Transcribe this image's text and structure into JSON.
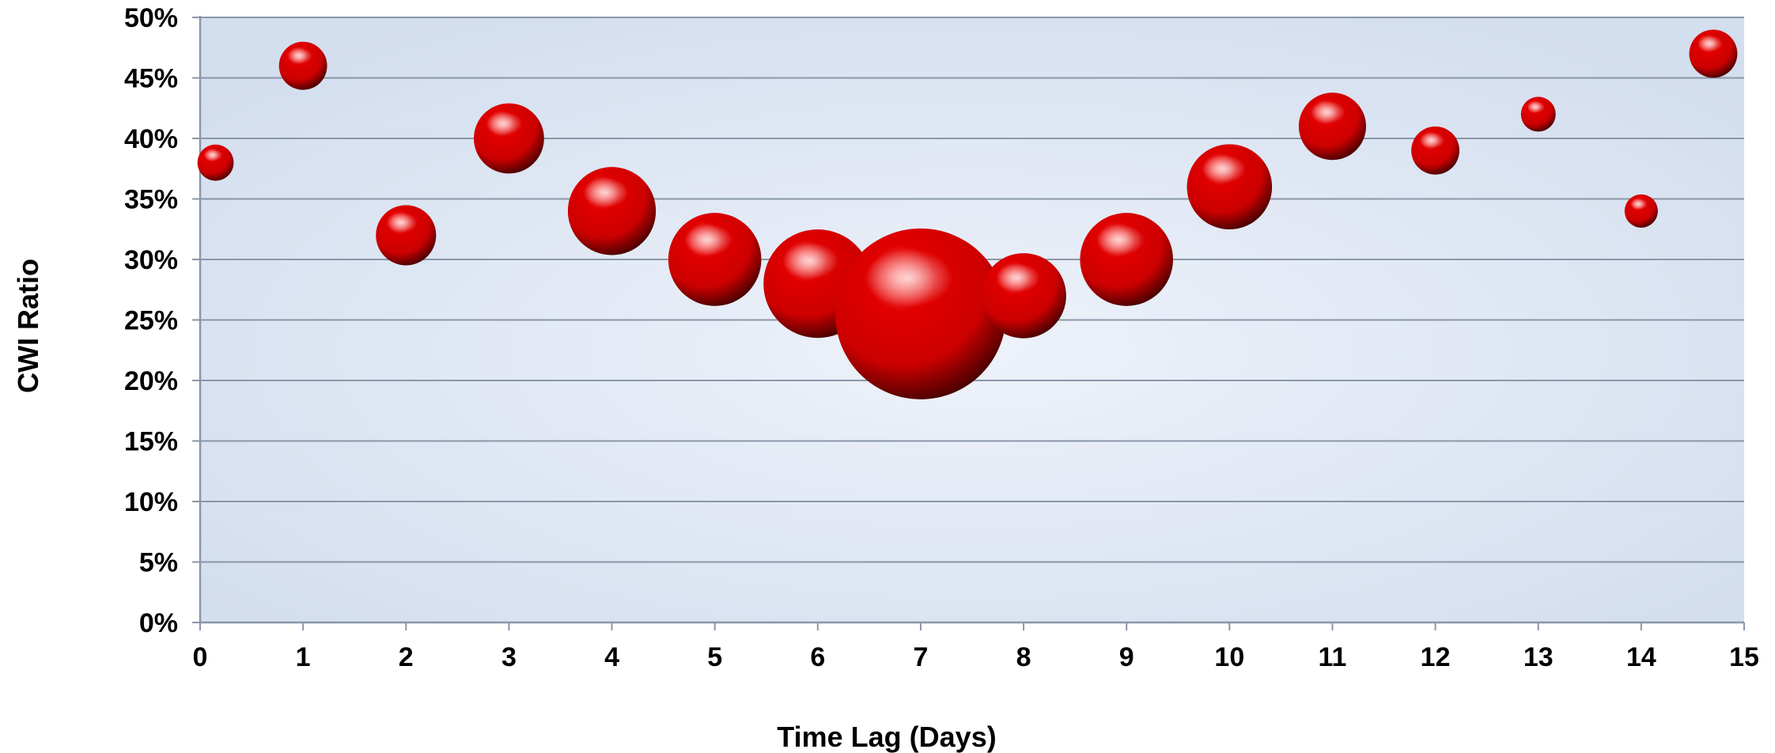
{
  "chart_data": {
    "type": "scatter",
    "variant": "bubble",
    "title": "",
    "xlabel": "Time Lag (Days)",
    "ylabel": "CWI Ratio",
    "xlim": [
      0,
      15
    ],
    "ylim": [
      0,
      0.5
    ],
    "x_ticks": [
      0,
      1,
      2,
      3,
      4,
      5,
      6,
      7,
      8,
      9,
      10,
      11,
      12,
      13,
      14,
      15
    ],
    "x_tick_labels": [
      "0",
      "1",
      "2",
      "3",
      "4",
      "5",
      "6",
      "7",
      "8",
      "9",
      "10",
      "11",
      "12",
      "13",
      "14",
      "15"
    ],
    "y_ticks": [
      0,
      0.05,
      0.1,
      0.15,
      0.2,
      0.25,
      0.3,
      0.35,
      0.4,
      0.45,
      0.5
    ],
    "y_tick_labels": [
      "0%",
      "5%",
      "10%",
      "15%",
      "20%",
      "25%",
      "30%",
      "35%",
      "40%",
      "45%",
      "50%"
    ],
    "grid": "horizontal",
    "legend": "none",
    "colors": {
      "bubble": "#cc0000",
      "bubble_highlight": "#ff6666",
      "bubble_shadow": "#4a0000",
      "plot_background_center": "#eef2fa",
      "plot_background_edge": "#d3deee",
      "gridline": "#8a97a8",
      "axis": "#8a97a8"
    },
    "series": [
      {
        "points": [
          {
            "x": 0.15,
            "y": 0.38,
            "size": 1.3
          },
          {
            "x": 1,
            "y": 0.46,
            "size": 2.3
          },
          {
            "x": 2,
            "y": 0.32,
            "size": 3.6
          },
          {
            "x": 3,
            "y": 0.4,
            "size": 4.9
          },
          {
            "x": 4,
            "y": 0.34,
            "size": 7.7
          },
          {
            "x": 5,
            "y": 0.3,
            "size": 8.6
          },
          {
            "x": 6,
            "y": 0.28,
            "size": 11.7
          },
          {
            "x": 7,
            "y": 0.255,
            "size": 29.0
          },
          {
            "x": 8,
            "y": 0.27,
            "size": 7.2
          },
          {
            "x": 9,
            "y": 0.3,
            "size": 8.6
          },
          {
            "x": 10,
            "y": 0.36,
            "size": 7.2
          },
          {
            "x": 11,
            "y": 0.41,
            "size": 4.5
          },
          {
            "x": 12,
            "y": 0.39,
            "size": 2.3
          },
          {
            "x": 13,
            "y": 0.42,
            "size": 1.2
          },
          {
            "x": 14,
            "y": 0.34,
            "size": 1.1
          },
          {
            "x": 14.7,
            "y": 0.47,
            "size": 2.3
          }
        ]
      }
    ]
  }
}
